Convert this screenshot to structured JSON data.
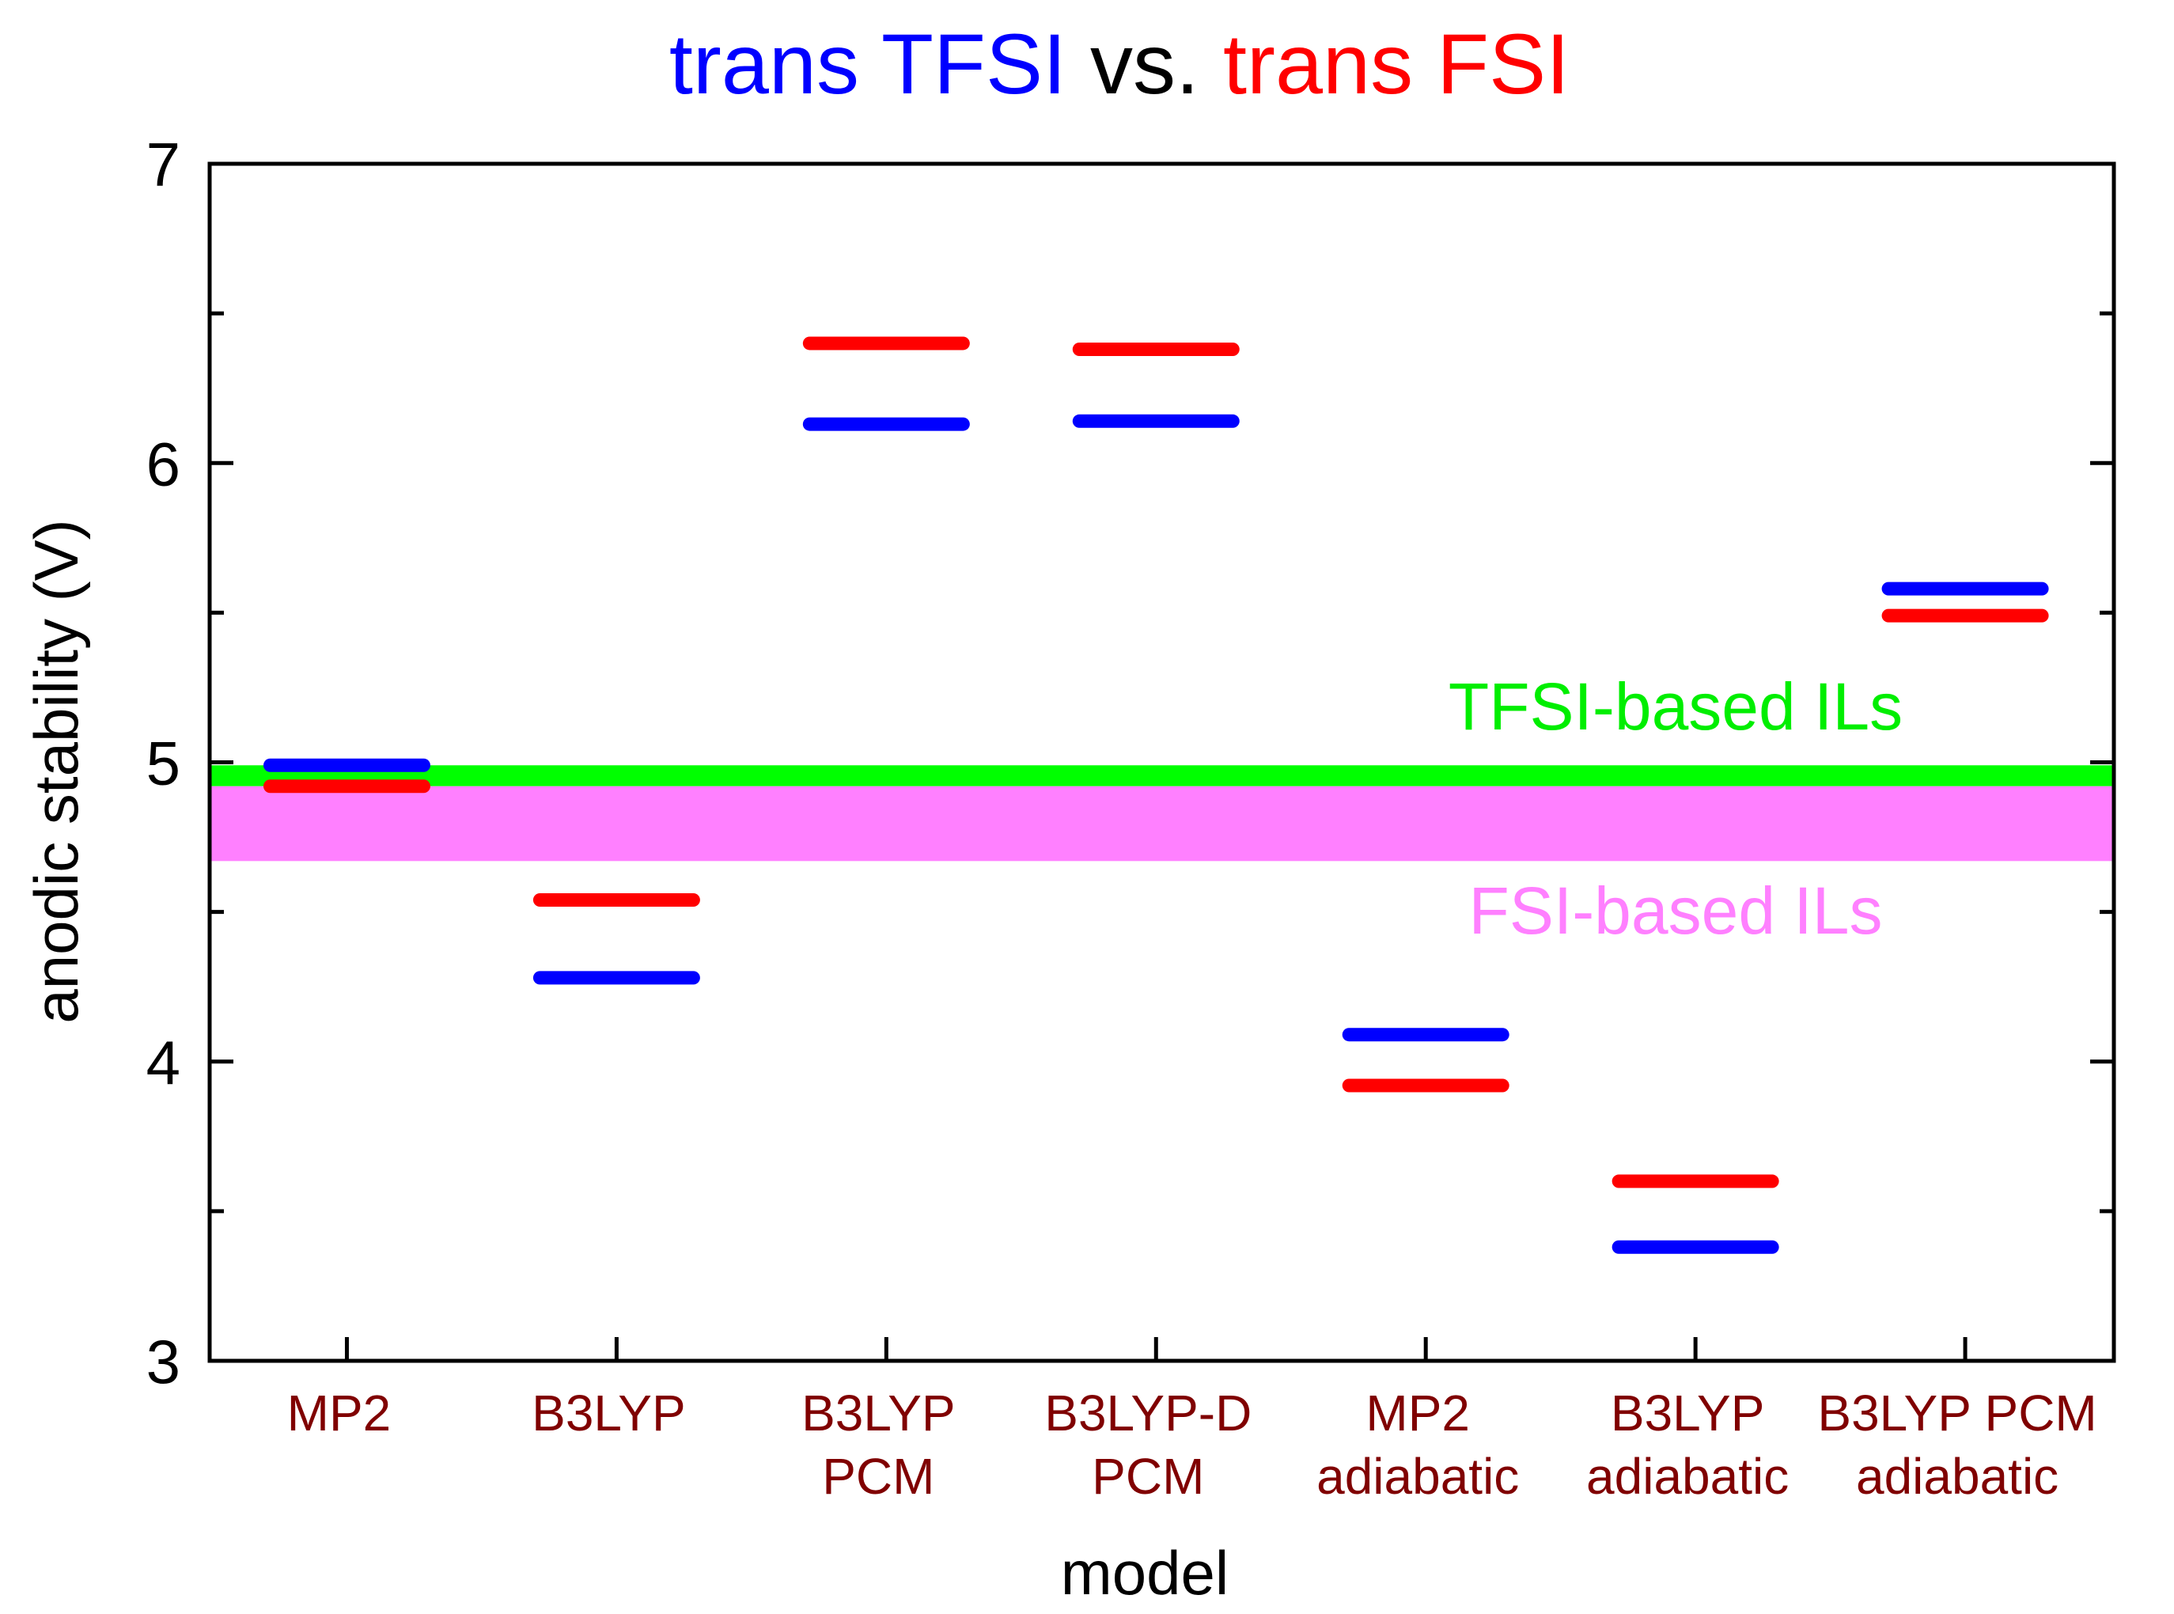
{
  "chart_data": {
    "type": "scatter",
    "title_parts": [
      {
        "text": "trans TFSI",
        "color": "#0000ff"
      },
      {
        "text": " vs. ",
        "color": "#000000"
      },
      {
        "text": "trans FSI",
        "color": "#ff0000"
      }
    ],
    "xlabel": "model",
    "ylabel": "anodic stability (V)",
    "ylim": [
      3,
      7
    ],
    "yticks": [
      "3",
      "4",
      "5",
      "6",
      "7"
    ],
    "categories": [
      [
        "MP2"
      ],
      [
        "B3LYP"
      ],
      [
        "B3LYP",
        "PCM"
      ],
      [
        "B3LYP-D",
        "PCM"
      ],
      [
        "MP2",
        "adiabatic"
      ],
      [
        "B3LYP",
        "adiabatic"
      ],
      [
        "B3LYP PCM",
        "adiabatic"
      ]
    ],
    "series": [
      {
        "name": "trans TFSI",
        "color": "#0000ff",
        "values": [
          4.99,
          4.28,
          6.13,
          6.14,
          4.09,
          3.38,
          5.58
        ]
      },
      {
        "name": "trans FSI",
        "color": "#ff0000",
        "values": [
          4.92,
          4.54,
          6.4,
          6.38,
          3.92,
          3.6,
          5.49
        ]
      }
    ],
    "bands": [
      {
        "label": "TFSI-based ILs",
        "color": "#00ff00",
        "text_color": "#00ee00",
        "range": [
          4.92,
          4.99
        ]
      },
      {
        "label": "FSI-based ILs",
        "color": "#ff80ff",
        "text_color": "#ff80ff",
        "range": [
          4.67,
          4.92
        ]
      }
    ]
  }
}
